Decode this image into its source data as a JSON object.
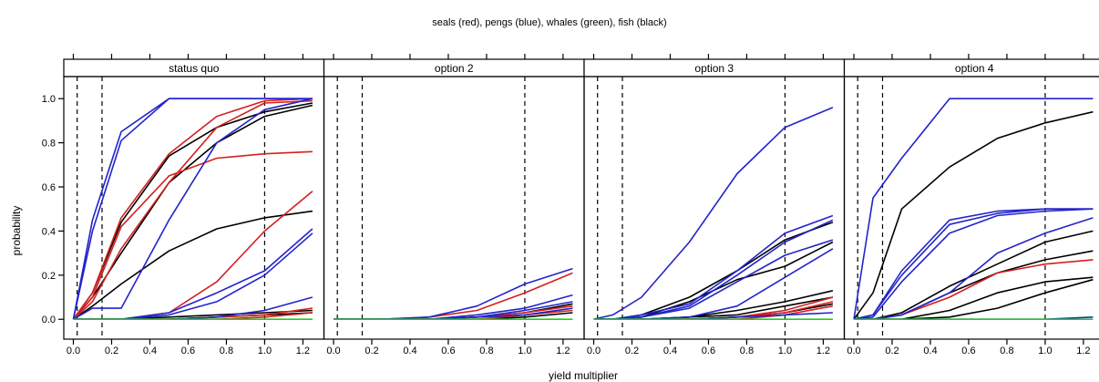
{
  "chart_data": {
    "type": "line",
    "title": "seals (red), pengs (blue), whales (green), fish (black)",
    "xlabel": "yield multiplier",
    "ylabel": "probability",
    "xlim": [
      -0.05,
      1.31
    ],
    "ylim": [
      -0.09,
      1.1
    ],
    "xticks": [
      0.0,
      0.2,
      0.4,
      0.6,
      0.8,
      1.0,
      1.2
    ],
    "xtick_labels": [
      "0.0",
      "0.2",
      "0.4",
      "0.6",
      "0.8",
      "1.0",
      "1.2"
    ],
    "yticks": [
      0.0,
      0.2,
      0.4,
      0.6,
      0.8,
      1.0
    ],
    "ytick_labels": [
      "0.0",
      "0.2",
      "0.4",
      "0.6",
      "0.8",
      "1.0"
    ],
    "reference_lines_x": [
      0.02,
      0.15,
      1.0
    ],
    "grid": false,
    "colors": {
      "seals": "#d42020",
      "pengs": "#2323cc",
      "whales": "#22cc22",
      "fish": "#000000"
    },
    "x": [
      0.0,
      0.1,
      0.25,
      0.5,
      0.75,
      1.0,
      1.25
    ],
    "panels": [
      {
        "label": "status quo",
        "series": [
          {
            "group": "pengs",
            "values": [
              0.0,
              0.45,
              0.85,
              1.0,
              1.0,
              1.0,
              1.0
            ]
          },
          {
            "group": "pengs",
            "values": [
              0.0,
              0.4,
              0.81,
              1.0,
              1.0,
              1.0,
              1.0
            ]
          },
          {
            "group": "pengs",
            "values": [
              0.0,
              0.05,
              0.05,
              0.45,
              0.8,
              0.95,
              1.0
            ]
          },
          {
            "group": "pengs",
            "values": [
              0.0,
              0.0,
              0.0,
              0.03,
              0.12,
              0.22,
              0.41
            ]
          },
          {
            "group": "pengs",
            "values": [
              0.0,
              0.0,
              0.0,
              0.02,
              0.08,
              0.2,
              0.39
            ]
          },
          {
            "group": "pengs",
            "values": [
              0.0,
              0.0,
              0.0,
              0.0,
              0.01,
              0.04,
              0.1
            ]
          },
          {
            "group": "seals",
            "values": [
              0.0,
              0.12,
              0.46,
              0.75,
              0.92,
              0.99,
              1.0
            ]
          },
          {
            "group": "seals",
            "values": [
              0.0,
              0.1,
              0.42,
              0.65,
              0.73,
              0.75,
              0.76
            ]
          },
          {
            "group": "seals",
            "values": [
              0.0,
              0.08,
              0.32,
              0.62,
              0.87,
              0.98,
              0.99
            ]
          },
          {
            "group": "seals",
            "values": [
              0.0,
              0.0,
              0.0,
              0.03,
              0.17,
              0.4,
              0.58
            ]
          },
          {
            "group": "seals",
            "values": [
              0.0,
              0.0,
              0.0,
              0.0,
              0.01,
              0.02,
              0.05
            ]
          },
          {
            "group": "seals",
            "values": [
              0.0,
              0.0,
              0.0,
              0.0,
              0.0,
              0.01,
              0.03
            ]
          },
          {
            "group": "fish",
            "values": [
              0.0,
              0.12,
              0.44,
              0.74,
              0.87,
              0.94,
              0.98
            ]
          },
          {
            "group": "fish",
            "values": [
              0.0,
              0.1,
              0.3,
              0.62,
              0.8,
              0.92,
              0.97
            ]
          },
          {
            "group": "fish",
            "values": [
              0.0,
              0.06,
              0.16,
              0.31,
              0.41,
              0.46,
              0.49
            ]
          },
          {
            "group": "fish",
            "values": [
              0.0,
              0.0,
              0.0,
              0.01,
              0.02,
              0.03,
              0.04
            ]
          },
          {
            "group": "fish",
            "values": [
              0.0,
              0.0,
              0.0,
              0.0,
              0.01,
              0.02,
              0.03
            ]
          },
          {
            "group": "whales",
            "values": [
              0.0,
              0.0,
              0.0,
              0.0,
              0.0,
              0.0,
              0.0
            ]
          }
        ]
      },
      {
        "label": "option 2",
        "series": [
          {
            "group": "pengs",
            "values": [
              0.0,
              0.0,
              0.0,
              0.01,
              0.06,
              0.16,
              0.23
            ]
          },
          {
            "group": "pengs",
            "values": [
              0.0,
              0.0,
              0.0,
              0.0,
              0.02,
              0.05,
              0.11
            ]
          },
          {
            "group": "pengs",
            "values": [
              0.0,
              0.0,
              0.0,
              0.0,
              0.01,
              0.04,
              0.08
            ]
          },
          {
            "group": "pengs",
            "values": [
              0.0,
              0.0,
              0.0,
              0.0,
              0.01,
              0.02,
              0.05
            ]
          },
          {
            "group": "seals",
            "values": [
              0.0,
              0.0,
              0.0,
              0.01,
              0.04,
              0.12,
              0.21
            ]
          },
          {
            "group": "seals",
            "values": [
              0.0,
              0.0,
              0.0,
              0.0,
              0.01,
              0.03,
              0.06
            ]
          },
          {
            "group": "seals",
            "values": [
              0.0,
              0.0,
              0.0,
              0.0,
              0.0,
              0.02,
              0.04
            ]
          },
          {
            "group": "fish",
            "values": [
              0.0,
              0.0,
              0.0,
              0.0,
              0.01,
              0.03,
              0.07
            ]
          },
          {
            "group": "fish",
            "values": [
              0.0,
              0.0,
              0.0,
              0.0,
              0.0,
              0.01,
              0.03
            ]
          },
          {
            "group": "whales",
            "values": [
              0.0,
              0.0,
              0.0,
              0.0,
              0.0,
              0.0,
              0.0
            ]
          }
        ]
      },
      {
        "label": "option 3",
        "series": [
          {
            "group": "pengs",
            "values": [
              0.0,
              0.02,
              0.1,
              0.35,
              0.66,
              0.87,
              0.96
            ]
          },
          {
            "group": "pengs",
            "values": [
              0.0,
              0.0,
              0.02,
              0.07,
              0.22,
              0.39,
              0.47
            ]
          },
          {
            "group": "pengs",
            "values": [
              0.0,
              0.0,
              0.01,
              0.06,
              0.2,
              0.35,
              0.45
            ]
          },
          {
            "group": "pengs",
            "values": [
              0.0,
              0.0,
              0.01,
              0.05,
              0.17,
              0.29,
              0.36
            ]
          },
          {
            "group": "pengs",
            "values": [
              0.0,
              0.0,
              0.0,
              0.01,
              0.06,
              0.19,
              0.32
            ]
          },
          {
            "group": "pengs",
            "values": [
              0.0,
              0.0,
              0.0,
              0.0,
              0.01,
              0.02,
              0.03
            ]
          },
          {
            "group": "seals",
            "values": [
              0.0,
              0.0,
              0.0,
              0.0,
              0.01,
              0.04,
              0.1
            ]
          },
          {
            "group": "seals",
            "values": [
              0.0,
              0.0,
              0.0,
              0.0,
              0.01,
              0.03,
              0.08
            ]
          },
          {
            "group": "seals",
            "values": [
              0.0,
              0.0,
              0.0,
              0.0,
              0.0,
              0.02,
              0.06
            ]
          },
          {
            "group": "fish",
            "values": [
              0.0,
              0.0,
              0.02,
              0.1,
              0.22,
              0.36,
              0.44
            ]
          },
          {
            "group": "fish",
            "values": [
              0.0,
              0.0,
              0.01,
              0.08,
              0.18,
              0.24,
              0.35
            ]
          },
          {
            "group": "fish",
            "values": [
              0.0,
              0.0,
              0.0,
              0.01,
              0.04,
              0.08,
              0.13
            ]
          },
          {
            "group": "fish",
            "values": [
              0.0,
              0.0,
              0.0,
              0.01,
              0.02,
              0.06,
              0.1
            ]
          },
          {
            "group": "fish",
            "values": [
              0.0,
              0.0,
              0.0,
              0.0,
              0.01,
              0.03,
              0.07
            ]
          },
          {
            "group": "whales",
            "values": [
              0.0,
              0.0,
              0.0,
              0.0,
              0.0,
              0.0,
              0.0
            ]
          }
        ]
      },
      {
        "label": "option 4",
        "series": [
          {
            "group": "pengs",
            "values": [
              0.0,
              0.55,
              0.73,
              1.0,
              1.0,
              1.0,
              1.0
            ]
          },
          {
            "group": "pengs",
            "values": [
              0.0,
              0.02,
              0.22,
              0.45,
              0.49,
              0.5,
              0.5
            ]
          },
          {
            "group": "pengs",
            "values": [
              0.0,
              0.02,
              0.2,
              0.43,
              0.48,
              0.5,
              0.5
            ]
          },
          {
            "group": "pengs",
            "values": [
              0.0,
              0.01,
              0.17,
              0.39,
              0.47,
              0.49,
              0.5
            ]
          },
          {
            "group": "pengs",
            "values": [
              0.0,
              0.0,
              0.02,
              0.12,
              0.3,
              0.39,
              0.46
            ]
          },
          {
            "group": "pengs",
            "values": [
              0.0,
              0.0,
              0.0,
              0.0,
              0.0,
              0.0,
              0.01
            ]
          },
          {
            "group": "seals",
            "values": [
              0.0,
              0.0,
              0.02,
              0.1,
              0.21,
              0.25,
              0.27
            ]
          },
          {
            "group": "fish",
            "values": [
              0.0,
              0.12,
              0.5,
              0.69,
              0.82,
              0.89,
              0.94
            ]
          },
          {
            "group": "fish",
            "values": [
              0.0,
              0.0,
              0.03,
              0.15,
              0.25,
              0.35,
              0.4
            ]
          },
          {
            "group": "fish",
            "values": [
              0.0,
              0.0,
              0.02,
              0.12,
              0.21,
              0.27,
              0.31
            ]
          },
          {
            "group": "fish",
            "values": [
              0.0,
              0.0,
              0.0,
              0.04,
              0.12,
              0.17,
              0.19
            ]
          },
          {
            "group": "fish",
            "values": [
              0.0,
              0.0,
              0.0,
              0.01,
              0.05,
              0.12,
              0.18
            ]
          },
          {
            "group": "whales",
            "values": [
              0.0,
              0.0,
              0.0,
              0.0,
              0.0,
              0.0,
              0.0
            ]
          }
        ]
      }
    ]
  }
}
